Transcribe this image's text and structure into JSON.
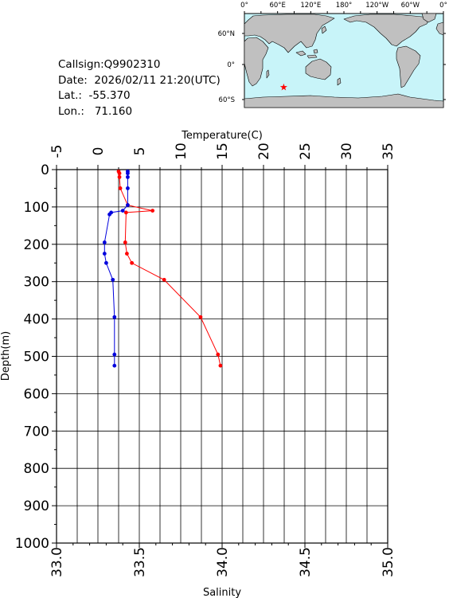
{
  "station": {
    "callsign_label": "Callsign:",
    "callsign": "Q9902310",
    "date_label": "Date:",
    "date": "2026/02/11 21:20(UTC)",
    "lat_label": "Lat.:",
    "lat": "-55.370",
    "lon_label": "Lon.:",
    "lon": "71.160"
  },
  "map": {
    "top_labels": [
      "0°",
      "60°E",
      "120°E",
      "180°",
      "120°W",
      "60°W",
      "0°"
    ],
    "right_labels": [
      "60°N",
      "0°",
      "60°S"
    ],
    "ocean_color": "#c8f4f9",
    "land_color": "#c0c0c0",
    "marker_icon": "star-icon",
    "marker_color": "#ff0000"
  },
  "chart_data": [
    {
      "type": "line",
      "title": "",
      "ylabel": "Depth(m)",
      "ylim": [
        1000,
        0
      ],
      "yticks": [
        "0",
        "100",
        "200",
        "300",
        "400",
        "500",
        "600",
        "700",
        "800",
        "900",
        "1000"
      ],
      "grid": true,
      "series": [
        {
          "axis": "top",
          "xlabel": "Temperature(C)",
          "xlim": [
            -5,
            35
          ],
          "xticks": [
            "-5",
            "0",
            "5",
            "10",
            "15",
            "20",
            "25",
            "30",
            "35"
          ],
          "color": "#ff0000",
          "points": [
            [
              2.5,
              5
            ],
            [
              2.6,
              10
            ],
            [
              2.6,
              20
            ],
            [
              2.7,
              50
            ],
            [
              3.6,
              95
            ],
            [
              6.6,
              110
            ],
            [
              3.4,
              115
            ],
            [
              3.3,
              195
            ],
            [
              3.5,
              225
            ],
            [
              4.1,
              250
            ],
            [
              8.0,
              295
            ],
            [
              12.4,
              395
            ],
            [
              14.5,
              495
            ],
            [
              14.8,
              525
            ]
          ]
        },
        {
          "axis": "bottom",
          "xlabel": "Salinity",
          "xlim": [
            33.0,
            35.0
          ],
          "xticks": [
            "33.0",
            "33.5",
            "34.0",
            "34.5",
            "35.0"
          ],
          "color": "#0000dd",
          "points": [
            [
              33.43,
              5
            ],
            [
              33.43,
              10
            ],
            [
              33.43,
              20
            ],
            [
              33.43,
              50
            ],
            [
              33.43,
              95
            ],
            [
              33.4,
              110
            ],
            [
              33.33,
              115
            ],
            [
              33.32,
              120
            ],
            [
              33.29,
              195
            ],
            [
              33.29,
              225
            ],
            [
              33.3,
              250
            ],
            [
              33.34,
              295
            ],
            [
              33.35,
              395
            ],
            [
              33.35,
              495
            ],
            [
              33.35,
              525
            ]
          ]
        }
      ]
    }
  ]
}
